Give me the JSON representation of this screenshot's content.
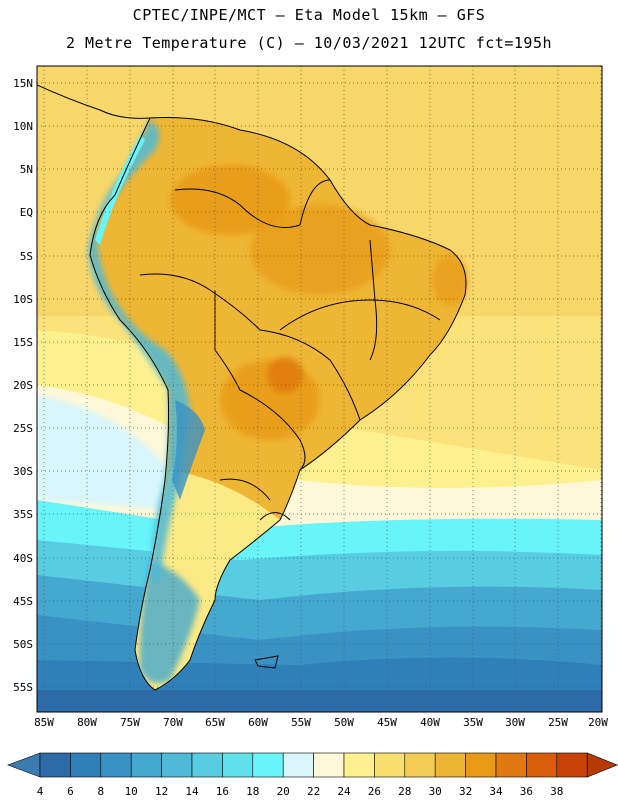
{
  "title_line1": "CPTEC/INPE/MCT –  Eta Model 15km – GFS",
  "title_line2": "2 Metre Temperature (C) – 10/03/2021 12UTC fct=195h",
  "lat_labels": [
    "15N",
    "10N",
    "5N",
    "EQ",
    "5S",
    "10S",
    "15S",
    "20S",
    "25S",
    "30S",
    "35S",
    "40S",
    "45S",
    "50S",
    "55S"
  ],
  "lon_labels": [
    "85W",
    "80W",
    "75W",
    "70W",
    "65W",
    "60W",
    "55W",
    "50W",
    "45W",
    "40W",
    "35W",
    "30W",
    "25W",
    "20W"
  ],
  "colorbar": {
    "labels": [
      "4",
      "6",
      "8",
      "10",
      "12",
      "14",
      "16",
      "18",
      "20",
      "22",
      "24",
      "26",
      "28",
      "30",
      "32",
      "34",
      "36",
      "38"
    ],
    "colors": [
      "#2d6aa8",
      "#2f7fb8",
      "#3a92c4",
      "#45a8cf",
      "#4fbad8",
      "#58cde2",
      "#5fe0ec",
      "#68f4f8",
      "#d8f6fb",
      "#fef8d8",
      "#fdf08f",
      "#f9df6d",
      "#f5cc53",
      "#eeb635",
      "#e89a16",
      "#e07a10",
      "#d85e0a",
      "#c94207"
    ],
    "low_color": "#3c7bb0",
    "high_color": "#b53a05"
  }
}
